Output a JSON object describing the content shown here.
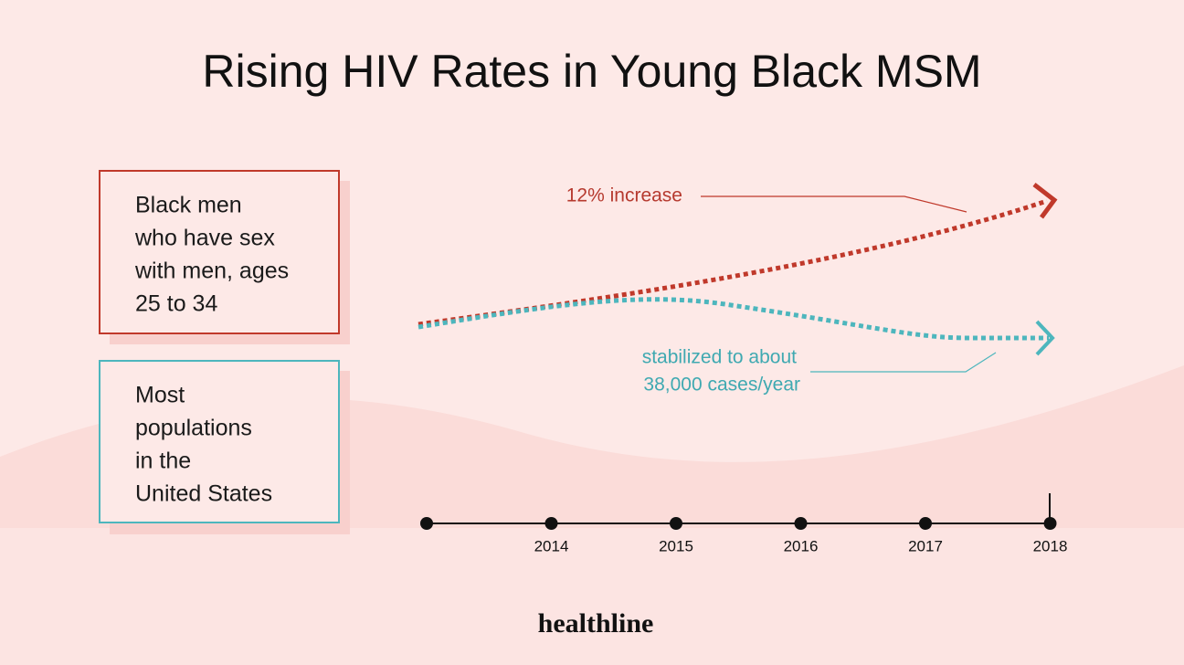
{
  "title": "Rising HIV Rates in Young Black MSM",
  "legend": [
    {
      "lines": [
        "Black men",
        "who have sex",
        "with men, ages",
        "25 to 34"
      ]
    },
    {
      "lines": [
        "Most",
        "populations",
        "in the",
        "United States"
      ]
    }
  ],
  "annotations": {
    "increase": "12% increase",
    "stabilized": [
      "stabilized to about",
      "38,000 cases/year"
    ]
  },
  "timeline": {
    "labels": [
      "2014",
      "2015",
      "2016",
      "2017",
      "2018"
    ]
  },
  "brand": "healthline"
}
